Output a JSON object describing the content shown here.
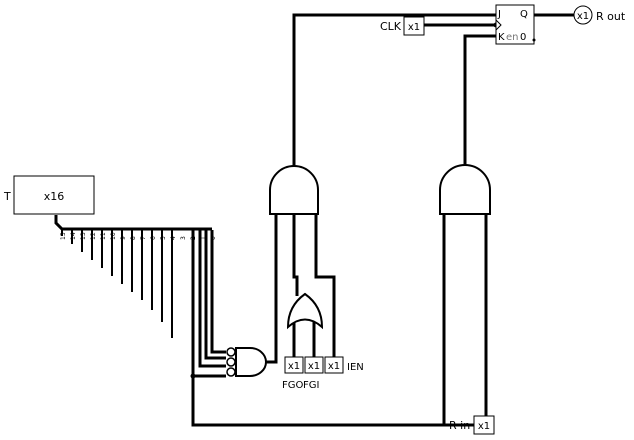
{
  "t_pin": {
    "name": "T",
    "width": "x16"
  },
  "clk_pin": {
    "name": "CLK",
    "width": "x1"
  },
  "fgo_pin": {
    "name": "FGO",
    "width": "x1"
  },
  "fgi_pin": {
    "name": "FGI",
    "width": "x1"
  },
  "ien_pin": {
    "name": "IEN",
    "width": "x1"
  },
  "r_in_pin": {
    "name": "R in",
    "width": "x1"
  },
  "r_out_pin": {
    "name": "R out",
    "width": "x1"
  },
  "flipflop": {
    "j": "J",
    "k": "K",
    "q": "Q",
    "en": "en",
    "init": "0"
  },
  "splitter_bits": [
    "15",
    "14",
    "13",
    "12",
    "11",
    "10",
    "9",
    "8",
    "7",
    "6",
    "5",
    "4",
    "3",
    "2",
    "1",
    "0"
  ]
}
